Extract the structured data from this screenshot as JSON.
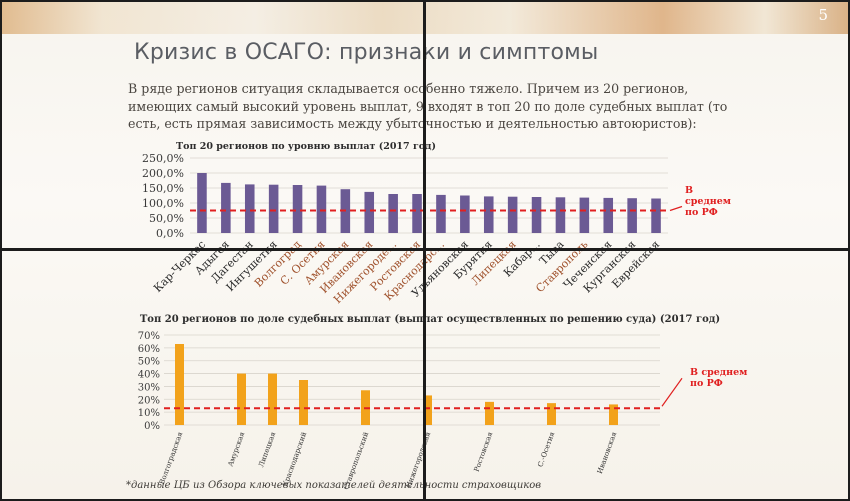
{
  "page_number": "5",
  "title": "Кризис в ОСАГО: признаки и симптомы",
  "intro_text": "В ряде регионов ситуация складывается особенно тяжело. Причем из 20 регионов, имеющих самый высокий уровень выплат, 9 входят в топ 20 по доле судебных выплат (то есть, есть прямая зависимость между убыточностью и деятельностью автоюристов):",
  "footnote": "*данные ЦБ из Обзора ключевых показателей деятельности страховщиков",
  "colors": {
    "bar1": "#6b5a94",
    "bar2": "#f2a21b",
    "avg_line": "#e02020",
    "highlight_label": "#a0522d"
  },
  "chart_data": [
    {
      "type": "bar",
      "title": "Топ 20 регионов по уровню выплат (2017 год)",
      "ylim": [
        0,
        250
      ],
      "yticks": [
        "0,0%",
        "50,0%",
        "100,0%",
        "150,0%",
        "200,0%",
        "250,0%"
      ],
      "grid": true,
      "categories": [
        "Кар-Черкес",
        "Адыгея",
        "Дагестан",
        "Ингушетия",
        "Волгоград",
        "С. Осетия",
        "Амурская",
        "Ивановская",
        "Нижегороде...",
        "Ростовская",
        "Краснодарс...",
        "Ульяновская",
        "Бурятия",
        "Липецкая",
        "Кабар...",
        "Тыва",
        "Ставрополь",
        "Чеченская",
        "Курганская",
        "Еврейская"
      ],
      "highlighted": [
        false,
        false,
        false,
        false,
        true,
        true,
        true,
        true,
        true,
        true,
        true,
        false,
        false,
        true,
        false,
        false,
        true,
        false,
        false,
        false
      ],
      "values": [
        200,
        167,
        162,
        161,
        160,
        158,
        146,
        137,
        130,
        130,
        127,
        125,
        122,
        121,
        120,
        119,
        118,
        117,
        116,
        115
      ],
      "average": 75,
      "average_label": "В среднем по РФ"
    },
    {
      "type": "bar",
      "title": "Топ 20 регионов по доле судебных выплат (выплат осуществленных по решению суда) (2017 год)",
      "ylim": [
        0,
        70
      ],
      "yticks": [
        "0%",
        "10%",
        "20%",
        "30%",
        "40%",
        "50%",
        "60%",
        "70%"
      ],
      "grid": true,
      "categories": [
        "Волгоградская",
        "",
        "Амурская",
        "Липецкая",
        "Краснодарский",
        "",
        "Ставропольский",
        "",
        "Нижегородская",
        "",
        "Ростовская",
        "",
        "С.-Осетия",
        "",
        "Ивановская",
        ""
      ],
      "values": [
        63,
        0,
        40,
        40,
        35,
        0,
        27,
        0,
        23,
        0,
        18,
        0,
        17,
        0,
        16,
        0
      ],
      "average": 13,
      "average_label": "В среднем по РФ"
    }
  ]
}
